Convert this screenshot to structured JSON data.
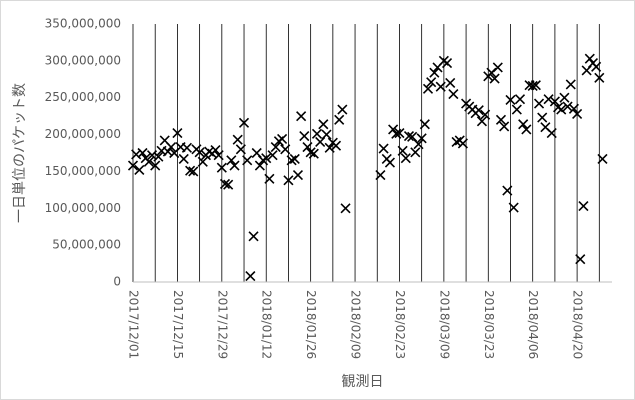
{
  "chart_data": {
    "type": "scatter",
    "title": "",
    "xlabel": "観測日",
    "ylabel": "一日単位のパケット数",
    "ylim": [
      0,
      350000000
    ],
    "y_ticks": [
      0,
      50000000,
      100000000,
      150000000,
      200000000,
      250000000,
      300000000,
      350000000
    ],
    "y_tick_labels": [
      "0",
      "50,000,000",
      "100,000,000",
      "150,000,000",
      "200,000,000",
      "250,000,000",
      "300,000,000",
      "350,000,000"
    ],
    "x_ticks": [
      "2017/12/01",
      "2017/12/15",
      "2017/12/29",
      "2018/01/12",
      "2018/01/26",
      "2018/02/09",
      "2018/02/23",
      "2018/03/09",
      "2018/03/23",
      "2018/04/06",
      "2018/04/20"
    ],
    "x_range": [
      "2017/12/01",
      "2018/05/01"
    ],
    "marker": "x",
    "marker_color": "#000000",
    "grid": "vertical",
    "points": [
      [
        "2017/12/01",
        158000000
      ],
      [
        "2017/12/02",
        173000000
      ],
      [
        "2017/12/03",
        152000000
      ],
      [
        "2017/12/04",
        175000000
      ],
      [
        "2017/12/05",
        168000000
      ],
      [
        "2017/12/06",
        163000000
      ],
      [
        "2017/12/07",
        172000000
      ],
      [
        "2017/12/08",
        158000000
      ],
      [
        "2017/12/09",
        170000000
      ],
      [
        "2017/12/10",
        178000000
      ],
      [
        "2017/12/11",
        192000000
      ],
      [
        "2017/12/12",
        177000000
      ],
      [
        "2017/12/13",
        183000000
      ],
      [
        "2017/12/14",
        175000000
      ],
      [
        "2017/12/15",
        202000000
      ],
      [
        "2017/12/16",
        183000000
      ],
      [
        "2017/12/17",
        167000000
      ],
      [
        "2017/12/18",
        182000000
      ],
      [
        "2017/12/19",
        151000000
      ],
      [
        "2017/12/20",
        150000000
      ],
      [
        "2017/12/21",
        180000000
      ],
      [
        "2017/12/22",
        176000000
      ],
      [
        "2017/12/23",
        163000000
      ],
      [
        "2017/12/24",
        172000000
      ],
      [
        "2017/12/25",
        177000000
      ],
      [
        "2017/12/26",
        174000000
      ],
      [
        "2017/12/27",
        179000000
      ],
      [
        "2017/12/28",
        172000000
      ],
      [
        "2017/12/29",
        155000000
      ],
      [
        "2017/12/30",
        133000000
      ],
      [
        "2017/12/31",
        132000000
      ],
      [
        "2018/01/01",
        165000000
      ],
      [
        "2018/01/02",
        158000000
      ],
      [
        "2018/01/03",
        193000000
      ],
      [
        "2018/01/04",
        180000000
      ],
      [
        "2018/01/05",
        216000000
      ],
      [
        "2018/01/06",
        165000000
      ],
      [
        "2018/01/07",
        8000000
      ],
      [
        "2018/01/08",
        62000000
      ],
      [
        "2018/01/09",
        175000000
      ],
      [
        "2018/01/10",
        158000000
      ],
      [
        "2018/01/11",
        165000000
      ],
      [
        "2018/01/12",
        168000000
      ],
      [
        "2018/01/13",
        140000000
      ],
      [
        "2018/01/14",
        172000000
      ],
      [
        "2018/01/15",
        183000000
      ],
      [
        "2018/01/16",
        191000000
      ],
      [
        "2018/01/17",
        194000000
      ],
      [
        "2018/01/18",
        180000000
      ],
      [
        "2018/01/19",
        138000000
      ],
      [
        "2018/01/20",
        165000000
      ],
      [
        "2018/01/21",
        167000000
      ],
      [
        "2018/01/22",
        145000000
      ],
      [
        "2018/01/23",
        225000000
      ],
      [
        "2018/01/24",
        198000000
      ],
      [
        "2018/01/25",
        183000000
      ],
      [
        "2018/01/26",
        176000000
      ],
      [
        "2018/01/27",
        174000000
      ],
      [
        "2018/01/28",
        201000000
      ],
      [
        "2018/01/29",
        190000000
      ],
      [
        "2018/01/30",
        214000000
      ],
      [
        "2018/01/31",
        200000000
      ],
      [
        "2018/02/01",
        182000000
      ],
      [
        "2018/02/02",
        189000000
      ],
      [
        "2018/02/03",
        185000000
      ],
      [
        "2018/02/04",
        220000000
      ],
      [
        "2018/02/05",
        234000000
      ],
      [
        "2018/02/06",
        100000000
      ],
      [
        "2018/02/17",
        145000000
      ],
      [
        "2018/02/18",
        181000000
      ],
      [
        "2018/02/19",
        167000000
      ],
      [
        "2018/02/20",
        162000000
      ],
      [
        "2018/02/21",
        207000000
      ],
      [
        "2018/02/22",
        201000000
      ],
      [
        "2018/02/23",
        202000000
      ],
      [
        "2018/02/24",
        178000000
      ],
      [
        "2018/02/25",
        168000000
      ],
      [
        "2018/02/26",
        198000000
      ],
      [
        "2018/02/27",
        197000000
      ],
      [
        "2018/02/28",
        176000000
      ],
      [
        "2018/03/01",
        187000000
      ],
      [
        "2018/03/02",
        195000000
      ],
      [
        "2018/03/03",
        214000000
      ],
      [
        "2018/03/04",
        262000000
      ],
      [
        "2018/03/05",
        271000000
      ],
      [
        "2018/03/06",
        284000000
      ],
      [
        "2018/03/07",
        291000000
      ],
      [
        "2018/03/08",
        265000000
      ],
      [
        "2018/03/09",
        300000000
      ],
      [
        "2018/03/10",
        297000000
      ],
      [
        "2018/03/11",
        270000000
      ],
      [
        "2018/03/12",
        255000000
      ],
      [
        "2018/03/13",
        190000000
      ],
      [
        "2018/03/14",
        192000000
      ],
      [
        "2018/03/15",
        188000000
      ],
      [
        "2018/03/16",
        242000000
      ],
      [
        "2018/03/17",
        238000000
      ],
      [
        "2018/03/18",
        234000000
      ],
      [
        "2018/03/19",
        229000000
      ],
      [
        "2018/03/20",
        233000000
      ],
      [
        "2018/03/21",
        218000000
      ],
      [
        "2018/03/22",
        227000000
      ],
      [
        "2018/03/23",
        279000000
      ],
      [
        "2018/03/24",
        284000000
      ],
      [
        "2018/03/25",
        276000000
      ],
      [
        "2018/03/26",
        291000000
      ],
      [
        "2018/03/27",
        220000000
      ],
      [
        "2018/03/28",
        211000000
      ],
      [
        "2018/03/29",
        124000000
      ],
      [
        "2018/03/30",
        247000000
      ],
      [
        "2018/03/31",
        101000000
      ],
      [
        "2018/04/01",
        234000000
      ],
      [
        "2018/04/02",
        248000000
      ],
      [
        "2018/04/03",
        214000000
      ],
      [
        "2018/04/04",
        207000000
      ],
      [
        "2018/04/05",
        267000000
      ],
      [
        "2018/04/06",
        266000000
      ],
      [
        "2018/04/07",
        267000000
      ],
      [
        "2018/04/08",
        242000000
      ],
      [
        "2018/04/09",
        223000000
      ],
      [
        "2018/04/10",
        210000000
      ],
      [
        "2018/04/11",
        248000000
      ],
      [
        "2018/04/12",
        202000000
      ],
      [
        "2018/04/13",
        245000000
      ],
      [
        "2018/04/14",
        237000000
      ],
      [
        "2018/04/15",
        234000000
      ],
      [
        "2018/04/16",
        250000000
      ],
      [
        "2018/04/17",
        238000000
      ],
      [
        "2018/04/18",
        268000000
      ],
      [
        "2018/04/19",
        235000000
      ],
      [
        "2018/04/20",
        228000000
      ],
      [
        "2018/04/21",
        31000000
      ],
      [
        "2018/04/22",
        103000000
      ],
      [
        "2018/04/23",
        287000000
      ],
      [
        "2018/04/24",
        303000000
      ],
      [
        "2018/04/25",
        297000000
      ],
      [
        "2018/04/26",
        292000000
      ],
      [
        "2018/04/27",
        277000000
      ],
      [
        "2018/04/28",
        167000000
      ]
    ]
  }
}
